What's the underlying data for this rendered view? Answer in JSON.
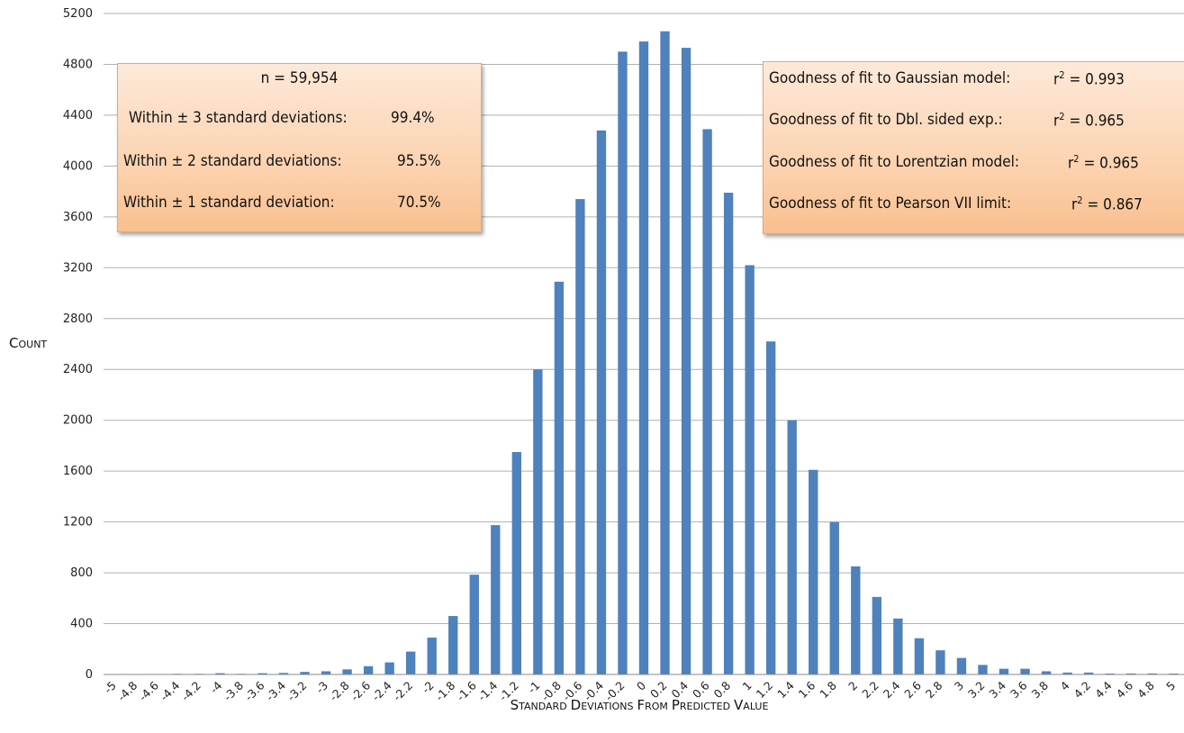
{
  "chart_data": {
    "type": "bar",
    "title": "",
    "xlabel": "Standard deviations from predicted value",
    "ylabel": "Count",
    "ylim": [
      0,
      5200
    ],
    "yticks": [
      0,
      400,
      800,
      1200,
      1600,
      2000,
      2400,
      2800,
      3200,
      3600,
      4000,
      4400,
      4800,
      5200
    ],
    "categories": [
      "-5",
      "-4.8",
      "-4.6",
      "-4.4",
      "-4.2",
      "-4",
      "-3.8",
      "-3.6",
      "-3.4",
      "-3.2",
      "-3",
      "-2.8",
      "-2.6",
      "-2.4",
      "-2.2",
      "-2",
      "-1.8",
      "-1.6",
      "-1.4",
      "-1.2",
      "-1",
      "-0.8",
      "-0.6",
      "-0.4",
      "-0.2",
      "0",
      "0.2",
      "0.4",
      "0.6",
      "0.8",
      "1",
      "1.2",
      "1.4",
      "1.6",
      "1.8",
      "2",
      "2.2",
      "2.4",
      "2.6",
      "2.8",
      "3",
      "3.2",
      "3.4",
      "3.6",
      "3.8",
      "4",
      "4.2",
      "4.4",
      "4.6",
      "4.8",
      "5"
    ],
    "values": [
      2,
      2,
      3,
      5,
      5,
      10,
      5,
      10,
      12,
      20,
      25,
      40,
      65,
      95,
      180,
      290,
      460,
      785,
      1175,
      1750,
      2400,
      3090,
      3740,
      4280,
      4900,
      4980,
      5060,
      4930,
      4290,
      3790,
      3220,
      2620,
      2000,
      1610,
      1200,
      850,
      610,
      440,
      285,
      190,
      130,
      75,
      45,
      45,
      25,
      15,
      15,
      7,
      8,
      8,
      7
    ],
    "series_color": "#4f81bd",
    "grid": true
  },
  "annotations": {
    "left_box": {
      "n": "n = 59,954",
      "rows": [
        {
          "label": "Within ± 3 standard deviations:",
          "value": "99.4%"
        },
        {
          "label": "Within ± 2 standard deviations:",
          "value": "95.5%"
        },
        {
          "label": "Within ± 1 standard deviation:",
          "value": "70.5%"
        }
      ]
    },
    "right_box": {
      "rows": [
        {
          "label": "Goodness of fit to Gaussian model:",
          "r_prefix": "r",
          "r_exp": "2",
          "r_value": " = 0.993"
        },
        {
          "label": "Goodness of fit to Dbl. sided exp.:",
          "r_prefix": "r",
          "r_exp": "2",
          "r_value": " = 0.965"
        },
        {
          "label": "Goodness of fit to Lorentzian model:",
          "r_prefix": "r",
          "r_exp": "2",
          "r_value": " = 0.965"
        },
        {
          "label": "Goodness of fit to Pearson VII limit:",
          "r_prefix": "r",
          "r_exp": "2",
          "r_value": " = 0.867"
        }
      ]
    }
  }
}
